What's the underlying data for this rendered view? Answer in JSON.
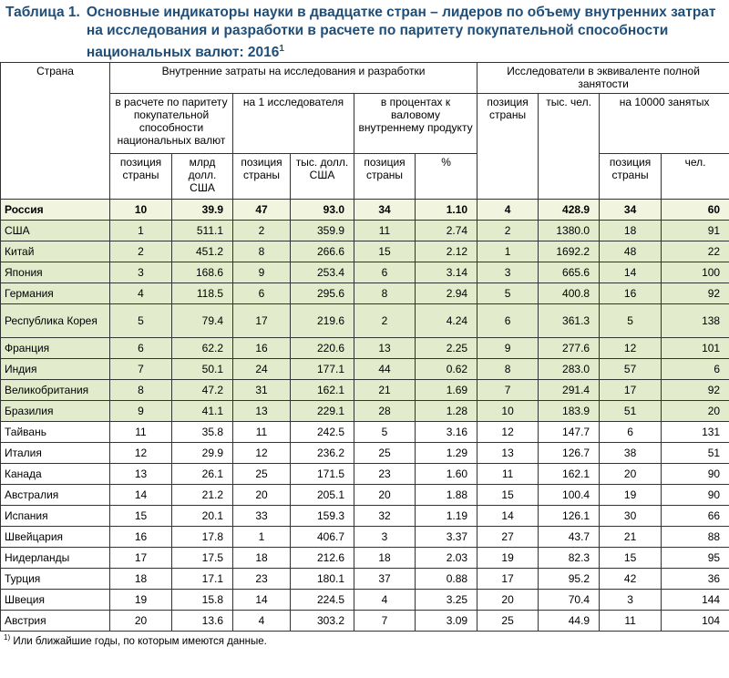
{
  "header": {
    "label": "Таблица 1.",
    "title": "Основные индикаторы науки в двадцатке стран – лидеров по объему внутренних затрат на исследования и разработки в расчете по паритету покупательной способности национальных валют: 2016",
    "title_note": "1"
  },
  "table": {
    "columns": {
      "country": "Страна",
      "expenditure": "Внутренние затраты на исследования и разработки",
      "researchers": "Исследователи в эквиваленте полной занятости",
      "ppp": "в расчете по паритету покупательной способности национальных валют",
      "per_researcher": "на 1 исследователя",
      "gdp": "в процентах к валовому внутреннему продукту",
      "res_position": "позиция страны",
      "res_thousands": "тыс. чел.",
      "per_10000": "на 10000 занятых",
      "ppp_position": "позиция страны",
      "ppp_value": "млрд долл. США",
      "per_res_position": "позиция страны",
      "per_res_value": "тыс. долл. США",
      "gdp_position": "позиция страны",
      "gdp_value": "%",
      "per_10000_position": "позиция страны",
      "per_10000_value": "чел."
    },
    "rows": [
      [
        "Россия",
        "10",
        "39.9",
        "47",
        "93.0",
        "34",
        "1.10",
        "4",
        "428.9",
        "34",
        "60"
      ],
      [
        "США",
        "1",
        "511.1",
        "2",
        "359.9",
        "11",
        "2.74",
        "2",
        "1380.0",
        "18",
        "91"
      ],
      [
        "Китай",
        "2",
        "451.2",
        "8",
        "266.6",
        "15",
        "2.12",
        "1",
        "1692.2",
        "48",
        "22"
      ],
      [
        "Япония",
        "3",
        "168.6",
        "9",
        "253.4",
        "6",
        "3.14",
        "3",
        "665.6",
        "14",
        "100"
      ],
      [
        "Германия",
        "4",
        "118.5",
        "6",
        "295.6",
        "8",
        "2.94",
        "5",
        "400.8",
        "16",
        "92"
      ],
      [
        "Республика Корея",
        "5",
        "79.4",
        "17",
        "219.6",
        "2",
        "4.24",
        "6",
        "361.3",
        "5",
        "138"
      ],
      [
        "Франция",
        "6",
        "62.2",
        "16",
        "220.6",
        "13",
        "2.25",
        "9",
        "277.6",
        "12",
        "101"
      ],
      [
        "Индия",
        "7",
        "50.1",
        "24",
        "177.1",
        "44",
        "0.62",
        "8",
        "283.0",
        "57",
        "6"
      ],
      [
        "Великобритания",
        "8",
        "47.2",
        "31",
        "162.1",
        "21",
        "1.69",
        "7",
        "291.4",
        "17",
        "92"
      ],
      [
        "Бразилия",
        "9",
        "41.1",
        "13",
        "229.1",
        "28",
        "1.28",
        "10",
        "183.9",
        "51",
        "20"
      ],
      [
        "Тайвань",
        "11",
        "35.8",
        "11",
        "242.5",
        "5",
        "3.16",
        "12",
        "147.7",
        "6",
        "131"
      ],
      [
        "Италия",
        "12",
        "29.9",
        "12",
        "236.2",
        "25",
        "1.29",
        "13",
        "126.7",
        "38",
        "51"
      ],
      [
        "Канада",
        "13",
        "26.1",
        "25",
        "171.5",
        "23",
        "1.60",
        "11",
        "162.1",
        "20",
        "90"
      ],
      [
        "Австралия",
        "14",
        "21.2",
        "20",
        "205.1",
        "20",
        "1.88",
        "15",
        "100.4",
        "19",
        "90"
      ],
      [
        "Испания",
        "15",
        "20.1",
        "33",
        "159.3",
        "32",
        "1.19",
        "14",
        "126.1",
        "30",
        "66"
      ],
      [
        "Швейцария",
        "16",
        "17.8",
        "1",
        "406.7",
        "3",
        "3.37",
        "27",
        "43.7",
        "21",
        "88"
      ],
      [
        "Нидерланды",
        "17",
        "17.5",
        "18",
        "212.6",
        "18",
        "2.03",
        "19",
        "82.3",
        "15",
        "95"
      ],
      [
        "Турция",
        "18",
        "17.1",
        "23",
        "180.1",
        "37",
        "0.88",
        "17",
        "95.2",
        "42",
        "36"
      ],
      [
        "Швеция",
        "19",
        "15.8",
        "14",
        "224.5",
        "4",
        "3.25",
        "20",
        "70.4",
        "3",
        "144"
      ],
      [
        "Австрия",
        "20",
        "13.6",
        "4",
        "303.2",
        "7",
        "3.09",
        "25",
        "44.9",
        "11",
        "104"
      ]
    ]
  },
  "footnote": {
    "marker": "1)",
    "text": "Или ближайшие годы, по которым имеются данные."
  }
}
